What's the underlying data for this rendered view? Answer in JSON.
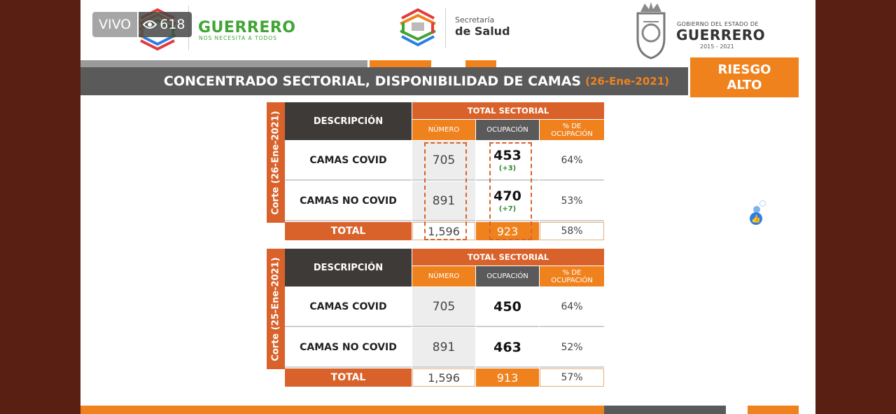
{
  "live": {
    "label": "VIVO",
    "views": "618"
  },
  "header": {
    "brand_title": "GUERRERO",
    "brand_subtitle": "NOS NECESITA A TODOS",
    "secretaria_line1": "Secretaría",
    "secretaria_line2": "de Salud",
    "gob_line1": "GOBIERNO DEL ESTADO DE",
    "gob_line2": "GUERRERO",
    "gob_years": "2015 - 2021"
  },
  "title": {
    "text": "CONCENTRADO SECTORIAL, DISPONIBILIDAD DE CAMAS",
    "date": "(26-Ene-2021)"
  },
  "riesgo": {
    "line1": "RIESGO",
    "line2": "ALTO"
  },
  "tables": [
    {
      "corte": "Corte (26-Ene-2021)",
      "desc_header": "DESCRIPCIÓN",
      "total_header": "TOTAL SECTORIAL",
      "col_numero": "NÚMERO",
      "col_ocupacion": "OCUPACIÓN",
      "col_pct": "% DE OCUPACIÓN",
      "rows": [
        {
          "label": "CAMAS COVID",
          "numero": "705",
          "ocupacion": "453",
          "delta": "(+3)",
          "pct": "64%"
        },
        {
          "label": "CAMAS NO COVID",
          "numero": "891",
          "ocupacion": "470",
          "delta": "(+7)",
          "pct": "53%"
        }
      ],
      "total": {
        "label": "TOTAL",
        "numero": "1,596",
        "ocupacion": "923",
        "pct": "58%"
      }
    },
    {
      "corte": "Corte (25-Ene-2021)",
      "desc_header": "DESCRIPCIÓN",
      "total_header": "TOTAL SECTORIAL",
      "col_numero": "NÚMERO",
      "col_ocupacion": "OCUPACIÓN",
      "col_pct": "% DE OCUPACIÓN",
      "rows": [
        {
          "label": "CAMAS COVID",
          "numero": "705",
          "ocupacion": "450",
          "pct": "64%"
        },
        {
          "label": "CAMAS NO COVID",
          "numero": "891",
          "ocupacion": "463",
          "pct": "52%"
        }
      ],
      "total": {
        "label": "TOTAL",
        "numero": "1,596",
        "ocupacion": "913",
        "pct": "57%"
      }
    }
  ],
  "colors": {
    "orange": "#f0821e",
    "dark_orange": "#d9622b",
    "gray": "#5a5a5a",
    "green": "#41a535"
  },
  "icons": [
    "eye-icon",
    "guerrero-logo-icon",
    "salud-logo-icon",
    "state-seal-icon",
    "like-icon"
  ]
}
